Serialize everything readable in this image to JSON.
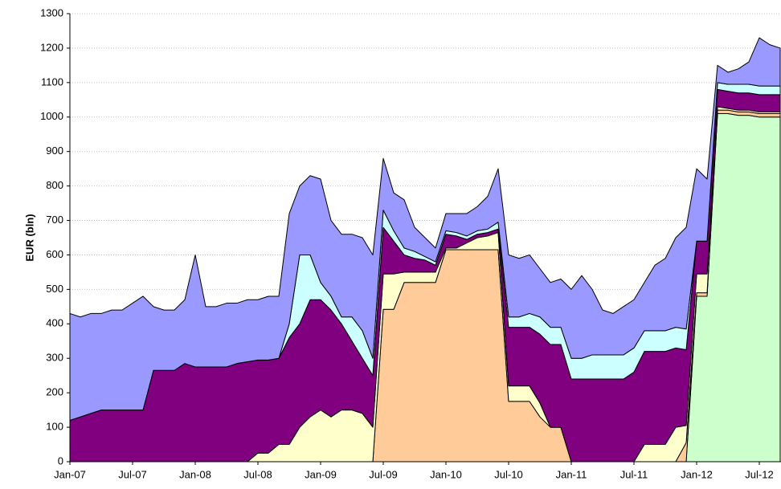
{
  "chart_data": {
    "type": "area",
    "y_label": "EUR (bln)",
    "x": [
      "2007-01",
      "2007-02",
      "2007-03",
      "2007-04",
      "2007-05",
      "2007-06",
      "2007-07",
      "2007-08",
      "2007-09",
      "2007-10",
      "2007-11",
      "2007-12",
      "2008-01",
      "2008-02",
      "2008-03",
      "2008-04",
      "2008-05",
      "2008-06",
      "2008-07",
      "2008-08",
      "2008-09",
      "2008-10",
      "2008-11",
      "2008-12",
      "2009-01",
      "2009-02",
      "2009-03",
      "2009-04",
      "2009-05",
      "2009-06",
      "2009-07",
      "2009-08",
      "2009-09",
      "2009-10",
      "2009-11",
      "2009-12",
      "2010-01",
      "2010-02",
      "2010-03",
      "2010-04",
      "2010-05",
      "2010-06",
      "2010-07",
      "2010-08",
      "2010-09",
      "2010-10",
      "2010-11",
      "2010-12",
      "2011-01",
      "2011-02",
      "2011-03",
      "2011-04",
      "2011-05",
      "2011-06",
      "2011-07",
      "2011-08",
      "2011-09",
      "2011-10",
      "2011-11",
      "2011-12",
      "2012-01",
      "2012-02",
      "2012-03",
      "2012-04",
      "2012-05",
      "2012-06",
      "2012-07",
      "2012-08",
      "2012-09"
    ],
    "stacked": true,
    "series": [
      {
        "color": "#ccffcc",
        "values": [
          0,
          0,
          0,
          0,
          0,
          0,
          0,
          0,
          0,
          0,
          0,
          0,
          0,
          0,
          0,
          0,
          0,
          0,
          0,
          0,
          0,
          0,
          0,
          0,
          0,
          0,
          0,
          0,
          0,
          0,
          0,
          0,
          0,
          0,
          0,
          0,
          0,
          0,
          0,
          0,
          0,
          0,
          0,
          0,
          0,
          0,
          0,
          0,
          0,
          0,
          0,
          0,
          0,
          0,
          0,
          0,
          0,
          0,
          0,
          0,
          480,
          480,
          1010,
          1010,
          1005,
          1005,
          1000,
          1000,
          1000
        ]
      },
      {
        "color": "#ffcc99",
        "values": [
          0,
          0,
          0,
          0,
          0,
          0,
          0,
          0,
          0,
          0,
          0,
          0,
          0,
          0,
          0,
          0,
          0,
          0,
          0,
          0,
          0,
          0,
          0,
          0,
          0,
          0,
          0,
          0,
          0,
          0,
          442,
          442,
          520,
          520,
          520,
          520,
          615,
          615,
          615,
          615,
          615,
          615,
          175,
          175,
          175,
          130,
          100,
          100,
          0,
          0,
          0,
          0,
          0,
          0,
          0,
          0,
          0,
          0,
          0,
          55,
          10,
          10,
          10,
          10,
          10,
          10,
          10,
          10,
          10
        ]
      },
      {
        "color": "#ffffcc",
        "values": [
          0,
          0,
          0,
          0,
          0,
          0,
          0,
          0,
          0,
          0,
          0,
          0,
          0,
          0,
          0,
          0,
          0,
          0,
          25,
          25,
          50,
          50,
          100,
          130,
          150,
          130,
          150,
          150,
          140,
          100,
          103,
          103,
          30,
          30,
          30,
          30,
          5,
          5,
          20,
          35,
          40,
          50,
          45,
          45,
          45,
          40,
          0,
          0,
          0,
          0,
          0,
          0,
          0,
          0,
          0,
          50,
          50,
          50,
          100,
          50,
          55,
          55,
          10,
          5,
          5,
          5,
          5,
          5,
          5
        ]
      },
      {
        "color": "#800080",
        "values": [
          120,
          130,
          140,
          150,
          150,
          150,
          150,
          150,
          265,
          265,
          265,
          285,
          275,
          275,
          275,
          275,
          285,
          290,
          270,
          270,
          250,
          310,
          300,
          340,
          320,
          310,
          250,
          200,
          160,
          150,
          135,
          95,
          50,
          40,
          35,
          20,
          40,
          35,
          10,
          10,
          10,
          10,
          170,
          170,
          170,
          200,
          240,
          240,
          240,
          240,
          240,
          240,
          240,
          240,
          260,
          270,
          270,
          270,
          230,
          220,
          95,
          95,
          50,
          50,
          50,
          50,
          50,
          50,
          50
        ]
      },
      {
        "color": "#ccffff",
        "values": [
          0,
          0,
          0,
          0,
          0,
          0,
          0,
          0,
          0,
          0,
          0,
          0,
          0,
          0,
          0,
          0,
          0,
          0,
          0,
          0,
          0,
          40,
          200,
          130,
          50,
          40,
          20,
          70,
          80,
          50,
          50,
          30,
          20,
          20,
          10,
          10,
          10,
          10,
          10,
          10,
          10,
          20,
          30,
          30,
          40,
          50,
          50,
          50,
          60,
          60,
          70,
          70,
          70,
          70,
          70,
          60,
          60,
          60,
          60,
          60,
          0,
          0,
          20,
          20,
          25,
          25,
          25,
          25,
          25
        ]
      },
      {
        "color": "#9999ff",
        "values": [
          310,
          290,
          290,
          280,
          290,
          290,
          310,
          330,
          185,
          175,
          175,
          185,
          325,
          175,
          175,
          185,
          175,
          180,
          175,
          185,
          180,
          320,
          200,
          230,
          300,
          220,
          240,
          240,
          270,
          300,
          150,
          110,
          140,
          70,
          55,
          40,
          50,
          55,
          65,
          70,
          95,
          155,
          180,
          170,
          170,
          140,
          130,
          140,
          200,
          240,
          190,
          130,
          120,
          140,
          140,
          140,
          190,
          210,
          260,
          295,
          210,
          180,
          50,
          35,
          45,
          65,
          140,
          120,
          110
        ]
      }
    ],
    "xlim": [
      "2007-01",
      "2012-09"
    ],
    "xticks": [
      {
        "value": "2007-01",
        "label": "Jan-07"
      },
      {
        "value": "2007-07",
        "label": "Jul-07"
      },
      {
        "value": "2008-01",
        "label": "Jan-08"
      },
      {
        "value": "2008-07",
        "label": "Jul-08"
      },
      {
        "value": "2009-01",
        "label": "Jan-09"
      },
      {
        "value": "2009-07",
        "label": "Jul-09"
      },
      {
        "value": "2010-01",
        "label": "Jan-10"
      },
      {
        "value": "2010-07",
        "label": "Jul-10"
      },
      {
        "value": "2011-01",
        "label": "Jan-11"
      },
      {
        "value": "2011-07",
        "label": "Jul-11"
      },
      {
        "value": "2012-01",
        "label": "Jan-12"
      },
      {
        "value": "2012-07",
        "label": "Jul-12"
      }
    ],
    "ylim": [
      0,
      1300
    ],
    "yticks": [
      0,
      100,
      200,
      300,
      400,
      500,
      600,
      700,
      800,
      900,
      1000,
      1100,
      1200,
      1300
    ],
    "grid": true
  }
}
